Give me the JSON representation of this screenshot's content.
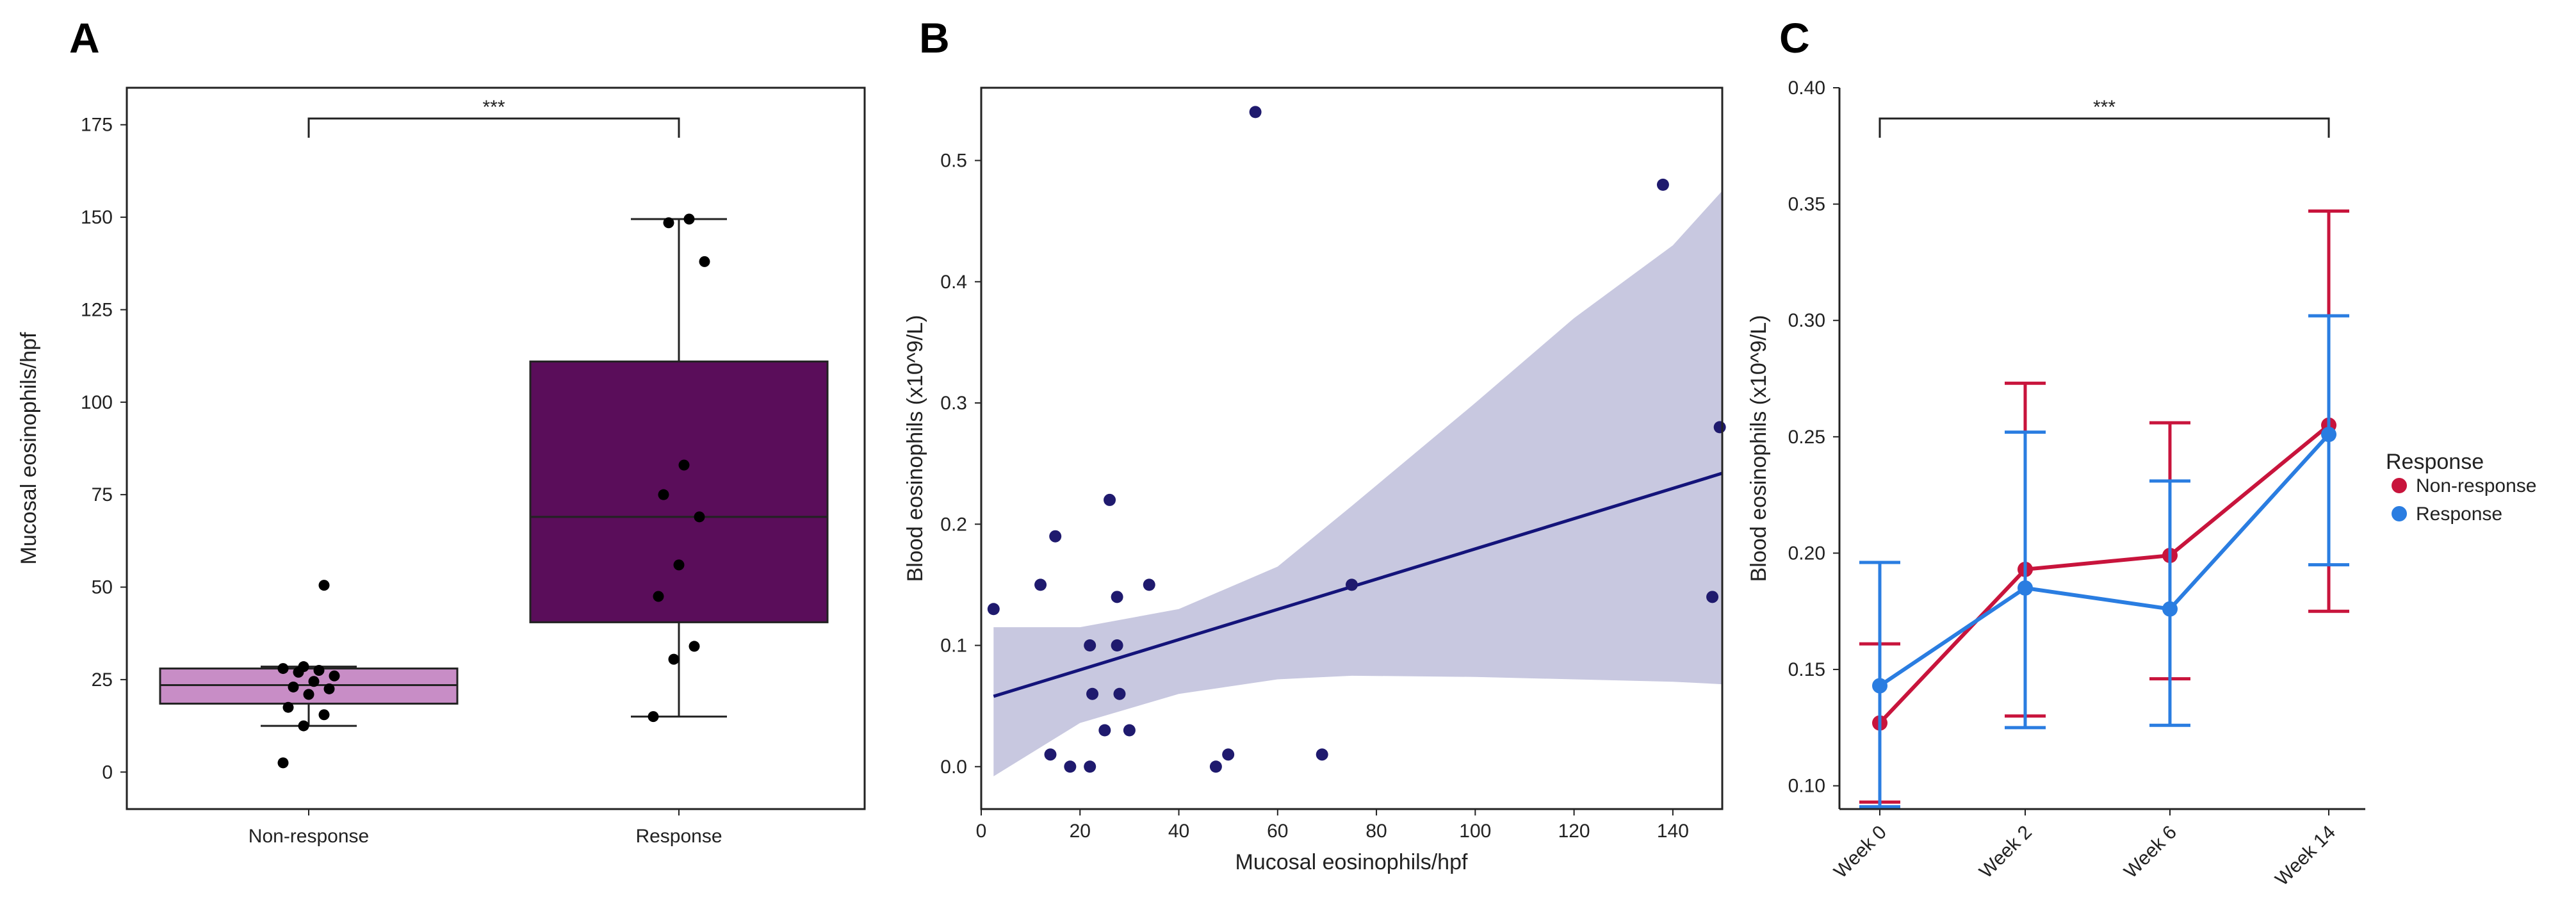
{
  "figure": {
    "panels": [
      "A",
      "B",
      "C"
    ]
  },
  "chart_data": [
    {
      "panel": "A",
      "type": "box",
      "title": "",
      "xlabel": "",
      "ylabel": "Mucosal eosinophils/hpf",
      "ylim": [
        -10,
        185
      ],
      "yticks": [
        0,
        25,
        50,
        75,
        100,
        125,
        150,
        175
      ],
      "categories": [
        "Non-response",
        "Response"
      ],
      "significance": {
        "between": [
          "Non-response",
          "Response"
        ],
        "label": "***"
      },
      "colors": {
        "Non-response": "#c88dc6",
        "Response": "#5a0d5a",
        "points": "#000000"
      },
      "groups": [
        {
          "name": "Non-response",
          "q1": 18.5,
          "median": 23.5,
          "q3": 28,
          "whisker_low": 12.5,
          "whisker_high": 28.5,
          "points": [
            2.5,
            12.5,
            15.5,
            17.5,
            21,
            22.5,
            23,
            24.5,
            26,
            27,
            27.5,
            28,
            28.5,
            50.5
          ]
        },
        {
          "name": "Response",
          "q1": 40.5,
          "median": 69,
          "q3": 111,
          "whisker_low": 15,
          "whisker_high": 149.5,
          "points": [
            15,
            30.5,
            34,
            47.5,
            56,
            69,
            75,
            83,
            138,
            148.5,
            149.5
          ]
        }
      ]
    },
    {
      "panel": "B",
      "type": "scatter",
      "title": "",
      "xlabel": "Mucosal eosinophils/hpf",
      "ylabel": "Blood eosinophils (x10^9/L)",
      "xlim": [
        0,
        150
      ],
      "ylim": [
        -0.035,
        0.56
      ],
      "xticks": [
        0,
        20,
        40,
        60,
        80,
        100,
        120,
        140
      ],
      "yticks": [
        0.0,
        0.1,
        0.2,
        0.3,
        0.4,
        0.5
      ],
      "colors": {
        "points": "#1f1a6e",
        "line": "#14147a",
        "band": "#c8c8e0"
      },
      "points": [
        [
          2.5,
          0.13
        ],
        [
          12,
          0.15
        ],
        [
          15,
          0.19
        ],
        [
          14,
          0.01
        ],
        [
          18,
          0.0
        ],
        [
          22,
          0.0
        ],
        [
          22,
          0.1
        ],
        [
          22.5,
          0.06
        ],
        [
          25,
          0.03
        ],
        [
          26,
          0.22
        ],
        [
          27.5,
          0.14
        ],
        [
          27.5,
          0.1
        ],
        [
          28,
          0.06
        ],
        [
          30,
          0.03
        ],
        [
          34,
          0.15
        ],
        [
          47.5,
          0.0
        ],
        [
          50,
          0.01
        ],
        [
          55.5,
          0.54
        ],
        [
          69,
          0.01
        ],
        [
          75,
          0.15
        ],
        [
          138,
          0.48
        ],
        [
          148,
          0.14
        ],
        [
          149.5,
          0.28
        ]
      ],
      "regression": {
        "x": [
          2.5,
          150
        ],
        "y": [
          0.058,
          0.242
        ]
      },
      "confidence_band": {
        "x": [
          2.5,
          20,
          40,
          60,
          75,
          100,
          120,
          140,
          150
        ],
        "lower": [
          -0.008,
          0.036,
          0.06,
          0.072,
          0.075,
          0.074,
          0.072,
          0.07,
          0.068
        ],
        "upper": [
          0.115,
          0.115,
          0.13,
          0.165,
          0.215,
          0.3,
          0.37,
          0.43,
          0.475
        ]
      }
    },
    {
      "panel": "C",
      "type": "line",
      "title": "",
      "xlabel": "",
      "ylabel": "Blood eosinophils (x10^9/L)",
      "categories": [
        "Week 0",
        "Week 2",
        "Week 6",
        "Week 14"
      ],
      "ylim": [
        0.09,
        0.4
      ],
      "yticks": [
        0.1,
        0.15,
        0.2,
        0.25,
        0.3,
        0.35,
        0.4
      ],
      "significance": {
        "between": [
          "Week 0",
          "Week 14"
        ],
        "label": "***"
      },
      "legend": {
        "title": "Response",
        "position": "right"
      },
      "series": [
        {
          "name": "Non-response",
          "color": "#c8143c",
          "values": [
            0.127,
            0.193,
            0.199,
            0.255
          ],
          "err_low": [
            0.093,
            0.13,
            0.146,
            0.175
          ],
          "err_high": [
            0.161,
            0.273,
            0.256,
            0.347
          ]
        },
        {
          "name": "Response",
          "color": "#2a7de1",
          "values": [
            0.143,
            0.185,
            0.176,
            0.251
          ],
          "err_low": [
            0.091,
            0.125,
            0.126,
            0.195
          ],
          "err_high": [
            0.196,
            0.252,
            0.231,
            0.302
          ]
        }
      ]
    }
  ]
}
